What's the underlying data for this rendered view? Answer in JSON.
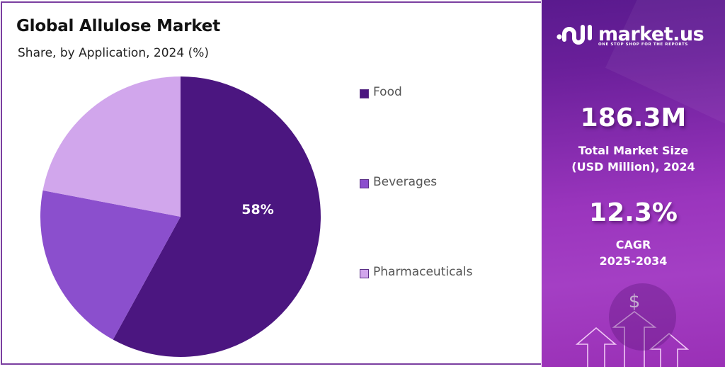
{
  "header": {
    "title": "Global Allulose Market",
    "subtitle": "Share, by Application, 2024 (%)"
  },
  "legend": [
    {
      "label": "Food",
      "color": "#4b1680"
    },
    {
      "label": "Beverages",
      "color": "#8b4fcd"
    },
    {
      "label": "Pharmaceuticals",
      "color": "#d1a6ec"
    }
  ],
  "pie_labels": {
    "food": "58%"
  },
  "brand": {
    "name": "market.us",
    "tagline": "ONE STOP SHOP FOR THE REPORTS",
    "icon": "market-us-logo-icon"
  },
  "stats": {
    "market_size_value": "186.3M",
    "market_size_label_line1": "Total Market Size",
    "market_size_label_line2": "(USD Million), 2024",
    "cagr_value": "12.3%",
    "cagr_label_line1": "CAGR",
    "cagr_label_line2": "2025-2034",
    "growth_icon": "dollar-growth-arrows-icon",
    "dollar_symbol": "$"
  },
  "colors": {
    "food": "#4b1680",
    "beverages": "#8b4fcd",
    "pharmaceuticals": "#d1a6ec",
    "panel_border": "#7b3fa0",
    "right_panel_top": "#5a1a8e",
    "right_panel_bottom": "#a43fc4"
  },
  "chart_data": {
    "type": "pie",
    "title": "Global Allulose Market",
    "subtitle": "Share, by Application, 2024 (%)",
    "categories": [
      "Food",
      "Beverages",
      "Pharmaceuticals"
    ],
    "values": [
      58,
      20,
      22
    ],
    "colors": [
      "#4b1680",
      "#8b4fcd",
      "#d1a6ec"
    ],
    "data_labels": {
      "Food": "58%"
    },
    "start_angle": "12 o'clock, clockwise",
    "legend_position": "right",
    "annotations": {
      "total_market_size": "186.3M (USD Million), 2024",
      "cagr": "12.3% (2025-2034)"
    }
  }
}
